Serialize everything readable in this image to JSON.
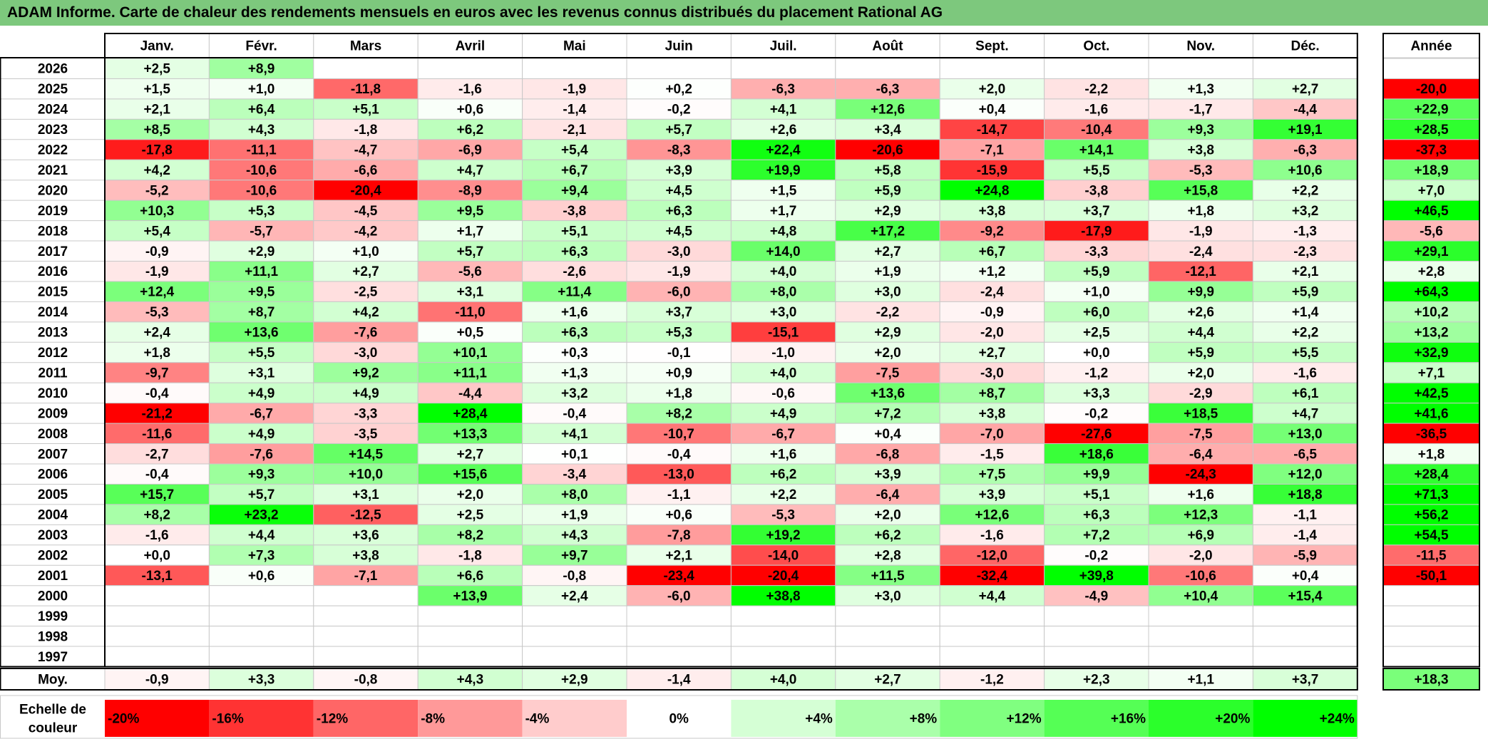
{
  "title": "ADAM Informe. Carte de chaleur des rendements mensuels en euros avec les revenus connus distribués du placement Rational AG",
  "chart_data": {
    "type": "heatmap",
    "title": "ADAM Informe. Carte de chaleur des rendements mensuels en euros avec les revenus connus distribués du placement Rational AG",
    "months": [
      "Janv.",
      "Févr.",
      "Mars",
      "Avril",
      "Mai",
      "Juin",
      "Juil.",
      "Août",
      "Sept.",
      "Oct.",
      "Nov.",
      "Déc."
    ],
    "year_header": "Année",
    "rows": [
      {
        "year": "2026",
        "values": [
          "+2,5",
          "+8,9",
          "",
          "",
          "",
          "",
          "",
          "",
          "",
          "",
          "",
          ""
        ],
        "annual": ""
      },
      {
        "year": "2025",
        "values": [
          "+1,5",
          "+1,0",
          "-11,8",
          "-1,6",
          "-1,9",
          "+0,2",
          "-6,3",
          "-6,3",
          "+2,0",
          "-2,2",
          "+1,3",
          "+2,7"
        ],
        "annual": "-20,0"
      },
      {
        "year": "2024",
        "values": [
          "+2,1",
          "+6,4",
          "+5,1",
          "+0,6",
          "-1,4",
          "-0,2",
          "+4,1",
          "+12,6",
          "+0,4",
          "-1,6",
          "-1,7",
          "-4,4"
        ],
        "annual": "+22,9"
      },
      {
        "year": "2023",
        "values": [
          "+8,5",
          "+4,3",
          "-1,8",
          "+6,2",
          "-2,1",
          "+5,7",
          "+2,6",
          "+3,4",
          "-14,7",
          "-10,4",
          "+9,3",
          "+19,1"
        ],
        "annual": "+28,5"
      },
      {
        "year": "2022",
        "values": [
          "-17,8",
          "-11,1",
          "-4,7",
          "-6,9",
          "+5,4",
          "-8,3",
          "+22,4",
          "-20,6",
          "-7,1",
          "+14,1",
          "+3,8",
          "-6,3"
        ],
        "annual": "-37,3"
      },
      {
        "year": "2021",
        "values": [
          "+4,2",
          "-10,6",
          "-6,6",
          "+4,7",
          "+6,7",
          "+3,9",
          "+19,9",
          "+5,8",
          "-15,9",
          "+5,5",
          "-5,3",
          "+10,6"
        ],
        "annual": "+18,9"
      },
      {
        "year": "2020",
        "values": [
          "-5,2",
          "-10,6",
          "-20,4",
          "-8,9",
          "+9,4",
          "+4,5",
          "+1,5",
          "+5,9",
          "+24,8",
          "-3,8",
          "+15,8",
          "+2,2"
        ],
        "annual": "+7,0"
      },
      {
        "year": "2019",
        "values": [
          "+10,3",
          "+5,3",
          "-4,5",
          "+9,5",
          "-3,8",
          "+6,3",
          "+1,7",
          "+2,9",
          "+3,8",
          "+3,7",
          "+1,8",
          "+3,2"
        ],
        "annual": "+46,5"
      },
      {
        "year": "2018",
        "values": [
          "+5,4",
          "-5,7",
          "-4,2",
          "+1,7",
          "+5,1",
          "+4,5",
          "+4,8",
          "+17,2",
          "-9,2",
          "-17,9",
          "-1,9",
          "-1,3"
        ],
        "annual": "-5,6"
      },
      {
        "year": "2017",
        "values": [
          "-0,9",
          "+2,9",
          "+1,0",
          "+5,7",
          "+6,3",
          "-3,0",
          "+14,0",
          "+2,7",
          "+6,7",
          "-3,3",
          "-2,4",
          "-2,3"
        ],
        "annual": "+29,1"
      },
      {
        "year": "2016",
        "values": [
          "-1,9",
          "+11,1",
          "+2,7",
          "-5,6",
          "-2,6",
          "-1,9",
          "+4,0",
          "+1,9",
          "+1,2",
          "+5,9",
          "-12,1",
          "+2,1"
        ],
        "annual": "+2,8"
      },
      {
        "year": "2015",
        "values": [
          "+12,4",
          "+9,5",
          "-2,5",
          "+3,1",
          "+11,4",
          "-6,0",
          "+8,0",
          "+3,0",
          "-2,4",
          "+1,0",
          "+9,9",
          "+5,9"
        ],
        "annual": "+64,3"
      },
      {
        "year": "2014",
        "values": [
          "-5,3",
          "+8,7",
          "+4,2",
          "-11,0",
          "+1,6",
          "+3,7",
          "+3,0",
          "-2,2",
          "-0,9",
          "+6,0",
          "+2,6",
          "+1,4"
        ],
        "annual": "+10,2"
      },
      {
        "year": "2013",
        "values": [
          "+2,4",
          "+13,6",
          "-7,6",
          "+0,5",
          "+6,3",
          "+5,3",
          "-15,1",
          "+2,9",
          "-2,0",
          "+2,5",
          "+4,4",
          "+2,2"
        ],
        "annual": "+13,2"
      },
      {
        "year": "2012",
        "values": [
          "+1,8",
          "+5,5",
          "-3,0",
          "+10,1",
          "+0,3",
          "-0,1",
          "-1,0",
          "+2,0",
          "+2,7",
          "+0,0",
          "+5,9",
          "+5,5"
        ],
        "annual": "+32,9"
      },
      {
        "year": "2011",
        "values": [
          "-9,7",
          "+3,1",
          "+9,2",
          "+11,1",
          "+1,3",
          "+0,9",
          "+4,0",
          "-7,5",
          "-3,0",
          "-1,2",
          "+2,0",
          "-1,6"
        ],
        "annual": "+7,1"
      },
      {
        "year": "2010",
        "values": [
          "-0,4",
          "+4,9",
          "+4,9",
          "-4,4",
          "+3,2",
          "+1,8",
          "-0,6",
          "+13,6",
          "+8,7",
          "+3,3",
          "-2,9",
          "+6,1"
        ],
        "annual": "+42,5"
      },
      {
        "year": "2009",
        "values": [
          "-21,2",
          "-6,7",
          "-3,3",
          "+28,4",
          "-0,4",
          "+8,2",
          "+4,9",
          "+7,2",
          "+3,8",
          "-0,2",
          "+18,5",
          "+4,7"
        ],
        "annual": "+41,6"
      },
      {
        "year": "2008",
        "values": [
          "-11,6",
          "+4,9",
          "-3,5",
          "+13,3",
          "+4,1",
          "-10,7",
          "-6,7",
          "+0,4",
          "-7,0",
          "-27,6",
          "-7,5",
          "+13,0"
        ],
        "annual": "-36,5"
      },
      {
        "year": "2007",
        "values": [
          "-2,7",
          "-7,6",
          "+14,5",
          "+2,7",
          "+0,1",
          "-0,4",
          "+1,6",
          "-6,8",
          "-1,5",
          "+18,6",
          "-6,4",
          "-6,5"
        ],
        "annual": "+1,8"
      },
      {
        "year": "2006",
        "values": [
          "-0,4",
          "+9,3",
          "+10,0",
          "+15,6",
          "-3,4",
          "-13,0",
          "+6,2",
          "+3,9",
          "+7,5",
          "+9,9",
          "-24,3",
          "+12,0"
        ],
        "annual": "+28,4"
      },
      {
        "year": "2005",
        "values": [
          "+15,7",
          "+5,7",
          "+3,1",
          "+2,0",
          "+8,0",
          "-1,1",
          "+2,2",
          "-6,4",
          "+3,9",
          "+5,1",
          "+1,6",
          "+18,8"
        ],
        "annual": "+71,3"
      },
      {
        "year": "2004",
        "values": [
          "+8,2",
          "+23,2",
          "-12,5",
          "+2,5",
          "+1,9",
          "+0,6",
          "-5,3",
          "+2,0",
          "+12,6",
          "+6,3",
          "+12,3",
          "-1,1"
        ],
        "annual": "+56,2"
      },
      {
        "year": "2003",
        "values": [
          "-1,6",
          "+4,4",
          "+3,6",
          "+8,2",
          "+4,3",
          "-7,8",
          "+19,2",
          "+6,2",
          "-1,6",
          "+7,2",
          "+6,9",
          "-1,4"
        ],
        "annual": "+54,5"
      },
      {
        "year": "2002",
        "values": [
          "+0,0",
          "+7,3",
          "+3,8",
          "-1,8",
          "+9,7",
          "+2,1",
          "-14,0",
          "+2,8",
          "-12,0",
          "-0,2",
          "-2,0",
          "-5,9"
        ],
        "annual": "-11,5"
      },
      {
        "year": "2001",
        "values": [
          "-13,1",
          "+0,6",
          "-7,1",
          "+6,6",
          "-0,8",
          "-23,4",
          "-20,4",
          "+11,5",
          "-32,4",
          "+39,8",
          "-10,6",
          "+0,4"
        ],
        "annual": "-50,1"
      },
      {
        "year": "2000",
        "values": [
          "",
          "",
          "",
          "+13,9",
          "+2,4",
          "-6,0",
          "+38,8",
          "+3,0",
          "+4,4",
          "-4,9",
          "+10,4",
          "+15,4"
        ],
        "annual": ""
      },
      {
        "year": "1999",
        "values": [
          "",
          "",
          "",
          "",
          "",
          "",
          "",
          "",
          "",
          "",
          "",
          ""
        ],
        "annual": ""
      },
      {
        "year": "1998",
        "values": [
          "",
          "",
          "",
          "",
          "",
          "",
          "",
          "",
          "",
          "",
          "",
          ""
        ],
        "annual": ""
      },
      {
        "year": "1997",
        "values": [
          "",
          "",
          "",
          "",
          "",
          "",
          "",
          "",
          "",
          "",
          "",
          ""
        ],
        "annual": ""
      }
    ],
    "average": {
      "label": "Moy.",
      "values": [
        "-0,9",
        "+3,3",
        "-0,8",
        "+4,3",
        "+2,9",
        "-1,4",
        "+4,0",
        "+2,7",
        "-1,2",
        "+2,3",
        "+1,1",
        "+3,7"
      ],
      "annual": "+18,3"
    },
    "color_scale": {
      "label_line1": "Echelle de",
      "label_line2": "couleur",
      "steps": [
        {
          "label": "-20%",
          "value": -20
        },
        {
          "label": "-16%",
          "value": -16
        },
        {
          "label": "-12%",
          "value": -12
        },
        {
          "label": "-8%",
          "value": -8
        },
        {
          "label": "-4%",
          "value": -4
        },
        {
          "label": "0%",
          "value": 0
        },
        {
          "label": "+4%",
          "value": 4
        },
        {
          "label": "+8%",
          "value": 8
        },
        {
          "label": "+12%",
          "value": 12
        },
        {
          "label": "+16%",
          "value": 16
        },
        {
          "label": "+20%",
          "value": 20
        },
        {
          "label": "+24%",
          "value": 24
        }
      ]
    },
    "colors": {
      "negative_max": "#ff0000",
      "neutral": "#ffffff",
      "positive_max": "#00ff00",
      "title_bar": "#7dc87d",
      "grid": "#c8c8c8",
      "border": "#000000"
    }
  }
}
